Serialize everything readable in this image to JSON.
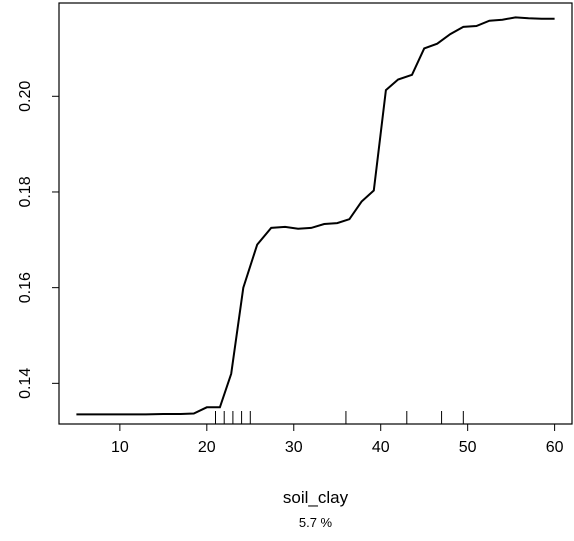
{
  "chart_data": {
    "type": "line",
    "title": "",
    "xlabel": "soil_clay",
    "subtitle": "5.7 %",
    "ylabel": "",
    "xlim": [
      3,
      62
    ],
    "ylim": [
      0.1315,
      0.2195
    ],
    "x_ticks": [
      10,
      20,
      30,
      40,
      50,
      60
    ],
    "y_ticks": [
      0.14,
      0.16,
      0.18,
      0.2
    ],
    "y_tick_labels": [
      "0.14",
      "0.16",
      "0.18",
      "0.20"
    ],
    "grid": false,
    "series": [
      {
        "x": [
          5.0,
          7.0,
          9.0,
          11.0,
          13.0,
          15.0,
          17.0,
          18.5,
          20.0,
          21.5,
          22.8,
          24.2,
          25.8,
          27.4,
          29.0,
          30.5,
          32.0,
          33.5,
          35.0,
          36.4,
          37.8,
          39.2,
          40.6,
          42.0,
          43.6,
          45.0,
          46.5,
          48.0,
          49.5,
          51.0,
          52.5,
          54.0,
          55.5,
          57.0,
          58.5,
          60.0
        ],
        "y": [
          0.1335,
          0.1335,
          0.1335,
          0.1335,
          0.1335,
          0.1336,
          0.1336,
          0.1337,
          0.135,
          0.135,
          0.142,
          0.16,
          0.169,
          0.1725,
          0.1727,
          0.1723,
          0.1725,
          0.1733,
          0.1735,
          0.1743,
          0.178,
          0.1803,
          0.2013,
          0.2035,
          0.2045,
          0.21,
          0.211,
          0.213,
          0.2145,
          0.2147,
          0.2158,
          0.216,
          0.2165,
          0.2163,
          0.2162,
          0.2162
        ]
      }
    ],
    "rug_x": [
      21.0,
      22.0,
      23.0,
      24.0,
      25.0,
      36.0,
      43.0,
      47.0,
      49.5
    ]
  }
}
